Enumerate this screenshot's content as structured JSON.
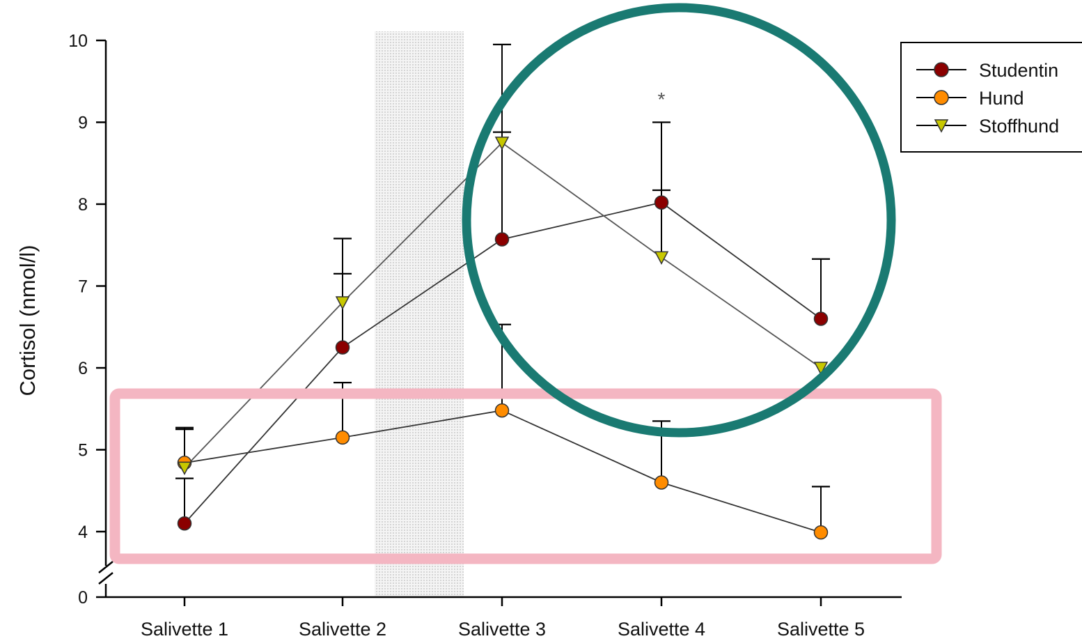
{
  "chart_data": {
    "type": "line",
    "ylabel": "Cortisol (nmol/l)",
    "xlabel": "",
    "categories": [
      "Salivette 1",
      "Salivette 2",
      "Salivette 3",
      "Salivette 4",
      "Salivette 5"
    ],
    "yticks": [
      "10",
      "9",
      "8",
      "7",
      "6",
      "5",
      "4",
      "0"
    ],
    "ylim": [
      0,
      10
    ],
    "y_axis_break": "between 0 and 4",
    "shaded_band": "between Salivette 2 and Salivette 3",
    "significance_marker": "*",
    "legend_position": "top-right",
    "series": [
      {
        "name": "Studentin",
        "color": "#8b0000",
        "marker": "circle",
        "values": [
          4.1,
          6.25,
          7.57,
          8.02,
          6.6
        ],
        "error_upper": [
          4.65,
          7.15,
          9.95,
          9.0,
          7.33
        ]
      },
      {
        "name": "Hund",
        "color": "#ff8c00",
        "marker": "circle",
        "values": [
          4.84,
          5.15,
          5.48,
          4.6,
          3.99
        ],
        "error_upper": [
          5.27,
          5.82,
          6.53,
          5.35,
          4.55
        ]
      },
      {
        "name": "Stoffhund",
        "color": "#c8c800",
        "marker": "triangle-down",
        "values": [
          4.78,
          6.8,
          8.75,
          7.35,
          6.0
        ],
        "error_upper": [
          5.25,
          7.58,
          8.88,
          8.17,
          6.0
        ]
      }
    ],
    "annotations": [
      {
        "shape": "rectangle",
        "color": "#f4b6c2",
        "label": ""
      },
      {
        "shape": "circle",
        "color": "#1a7a72",
        "label": ""
      }
    ]
  }
}
